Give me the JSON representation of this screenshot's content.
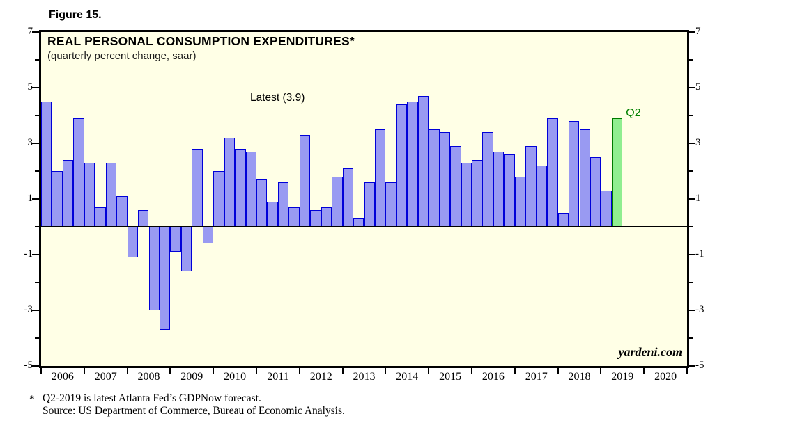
{
  "figure_label": "Figure 15.",
  "chart": {
    "title": "REAL PERSONAL CONSUMPTION EXPENDITURES*",
    "subtitle": "(quarterly percent change, saar)",
    "annotation": "Latest (3.9)",
    "forecast_label": "Q2",
    "watermark": "yardeni.com"
  },
  "footnote": {
    "marker": "*",
    "line1": "Q2-2019 is latest Atlanta Fed’s GDPNow forecast.",
    "line2": "Source: US Department of Commerce, Bureau of Economic Analysis."
  },
  "chart_data": {
    "type": "bar",
    "title": "REAL PERSONAL CONSUMPTION EXPENDITURES*",
    "subtitle": "(quarterly percent change, saar)",
    "ylabel": "quarterly percent change, saar",
    "ylim": [
      -5,
      7
    ],
    "y_major_ticks": [
      7,
      5,
      3,
      1,
      -1,
      -3,
      -5
    ],
    "y_minor_ticks": [
      6,
      4,
      2,
      0,
      -2,
      -4
    ],
    "x_years": [
      2006,
      2007,
      2008,
      2009,
      2010,
      2011,
      2012,
      2013,
      2014,
      2015,
      2016,
      2017,
      2018,
      2019,
      2020
    ],
    "grid": false,
    "legend": false,
    "series": [
      {
        "name": "Real Personal Consumption Expenditures, quarterly percent change (saar)",
        "by_year": [
          {
            "year": 2006,
            "values": [
              4.5,
              2.0,
              2.4,
              3.9
            ]
          },
          {
            "year": 2007,
            "values": [
              2.3,
              0.7,
              2.3,
              1.1
            ]
          },
          {
            "year": 2008,
            "values": [
              -1.1,
              0.6,
              -3.0,
              -3.7
            ]
          },
          {
            "year": 2009,
            "values": [
              -0.9,
              -1.6,
              2.8,
              -0.6
            ]
          },
          {
            "year": 2010,
            "values": [
              2.0,
              3.2,
              2.8,
              2.7
            ]
          },
          {
            "year": 2011,
            "values": [
              1.7,
              0.9,
              1.6,
              0.7
            ]
          },
          {
            "year": 2012,
            "values": [
              3.3,
              0.6,
              0.7,
              1.8
            ]
          },
          {
            "year": 2013,
            "values": [
              2.1,
              0.3,
              1.6,
              3.5
            ]
          },
          {
            "year": 2014,
            "values": [
              1.6,
              4.4,
              4.5,
              4.7
            ]
          },
          {
            "year": 2015,
            "values": [
              3.5,
              3.4,
              2.9,
              2.3
            ]
          },
          {
            "year": 2016,
            "values": [
              2.4,
              3.4,
              2.7,
              2.6
            ]
          },
          {
            "year": 2017,
            "values": [
              1.8,
              2.9,
              2.2,
              3.9
            ]
          },
          {
            "year": 2018,
            "values": [
              0.5,
              3.8,
              3.5,
              2.5
            ]
          },
          {
            "year": 2019,
            "values": [
              1.3,
              3.9,
              null,
              null
            ]
          },
          {
            "year": 2020,
            "values": [
              null,
              null,
              null,
              null
            ]
          }
        ]
      }
    ],
    "forecast": {
      "year": 2019,
      "quarter": 2,
      "value": 3.9,
      "label": "Q2"
    },
    "annotation": "Latest (3.9)"
  },
  "colors": {
    "bar_fill": "#999af2",
    "bar_border": "#0000d8",
    "forecast_fill": "#90ee90",
    "forecast_border": "#007a00",
    "forecast_label": "#008000",
    "plot_background": "#ffffe6",
    "axis": "#000000"
  }
}
